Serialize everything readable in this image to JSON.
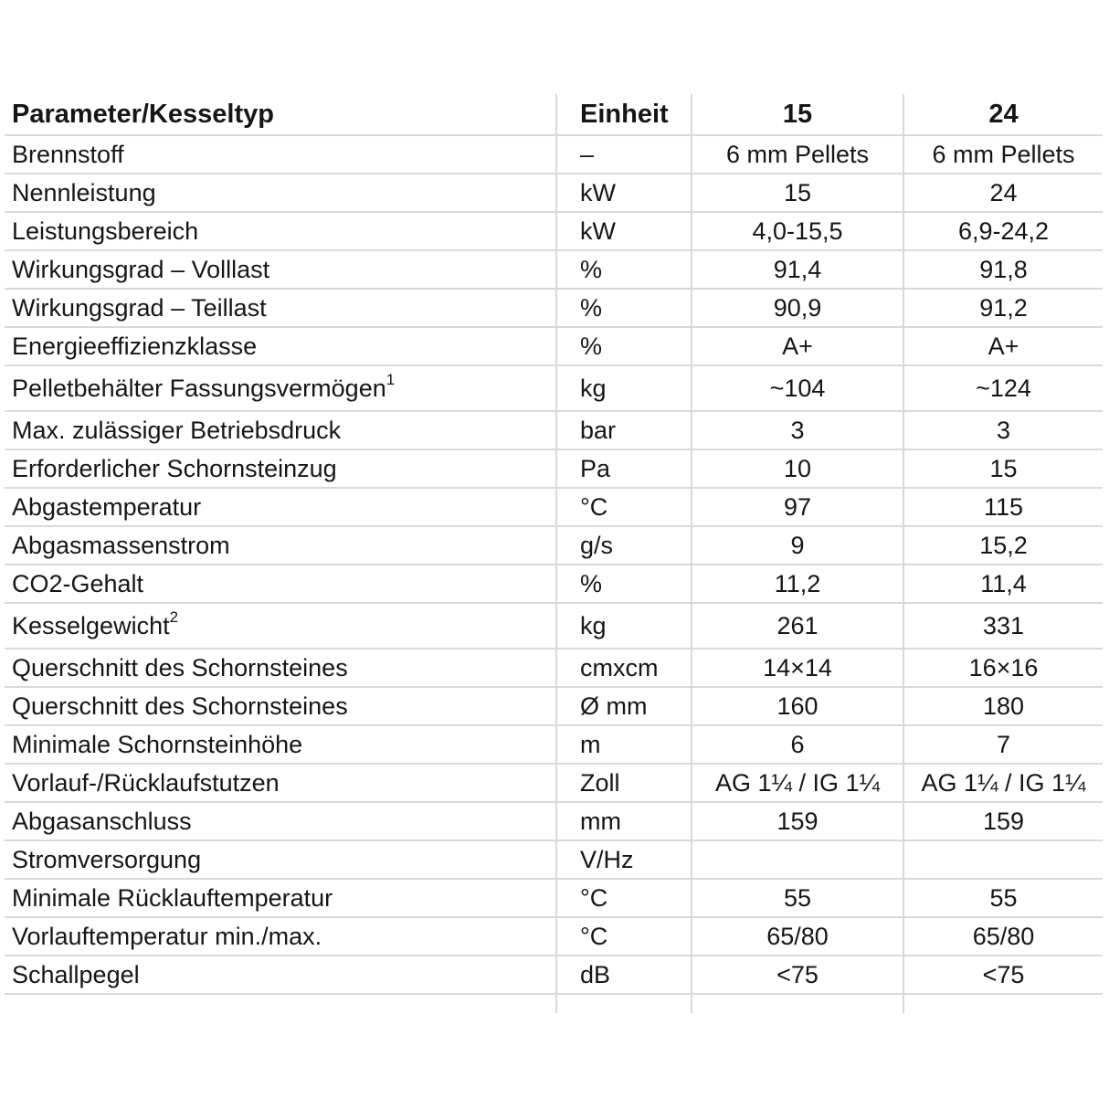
{
  "colors": {
    "background": "#ffffff",
    "grid_line": "#d9d9d9",
    "text": "#161616"
  },
  "table": {
    "columns": [
      {
        "label": "Parameter/Kesseltyp"
      },
      {
        "label": "Einheit"
      },
      {
        "label": "15"
      },
      {
        "label": "24"
      }
    ],
    "rows": [
      {
        "parameter": "Brennstoff",
        "sup": "",
        "unit": "–",
        "model15": "6 mm Pellets",
        "model24": "6 mm Pellets"
      },
      {
        "parameter": "Nennleistung",
        "sup": "",
        "unit": "kW",
        "model15": "15",
        "model24": "24"
      },
      {
        "parameter": "Leistungsbereich",
        "sup": "",
        "unit": "kW",
        "model15": "4,0-15,5",
        "model24": "6,9-24,2"
      },
      {
        "parameter": "Wirkungsgrad – Volllast",
        "sup": "",
        "unit": "%",
        "model15": "91,4",
        "model24": "91,8"
      },
      {
        "parameter": "Wirkungsgrad – Teillast",
        "sup": "",
        "unit": "%",
        "model15": "90,9",
        "model24": "91,2"
      },
      {
        "parameter": "Energieeffizienzklasse",
        "sup": "",
        "unit": "%",
        "model15": "A+",
        "model24": "A+"
      },
      {
        "parameter": "Pelletbehälter Fassungsvermögen",
        "sup": "1",
        "unit": "kg",
        "model15": "~104",
        "model24": "~124"
      },
      {
        "parameter": "Max. zulässiger Betriebsdruck",
        "sup": "",
        "unit": "bar",
        "model15": "3",
        "model24": "3"
      },
      {
        "parameter": "Erforderlicher Schornsteinzug",
        "sup": "",
        "unit": "Pa",
        "model15": "10",
        "model24": "15"
      },
      {
        "parameter": "Abgastemperatur",
        "sup": "",
        "unit": "°C",
        "model15": "97",
        "model24": "115"
      },
      {
        "parameter": "Abgasmassenstrom",
        "sup": "",
        "unit": "g/s",
        "model15": "9",
        "model24": "15,2"
      },
      {
        "parameter": "CO2-Gehalt",
        "sup": "",
        "unit": "%",
        "model15": "11,2",
        "model24": "11,4"
      },
      {
        "parameter": "Kesselgewicht",
        "sup": "2",
        "unit": "kg",
        "model15": "261",
        "model24": "331"
      },
      {
        "parameter": "Querschnitt des Schornsteines",
        "sup": "",
        "unit": "cmxcm",
        "model15": "14×14",
        "model24": "16×16"
      },
      {
        "parameter": "Querschnitt des Schornsteines",
        "sup": "",
        "unit": "Ø mm",
        "model15": "160",
        "model24": "180"
      },
      {
        "parameter": "Minimale Schornsteinhöhe",
        "sup": "",
        "unit": "m",
        "model15": "6",
        "model24": "7"
      },
      {
        "parameter": "Vorlauf-/Rücklaufstutzen",
        "sup": "",
        "unit": "Zoll",
        "model15": "AG 1¼ / IG 1¼",
        "model24": "AG 1¼ / IG 1¼"
      },
      {
        "parameter": "Abgasanschluss",
        "sup": "",
        "unit": "mm",
        "model15": "159",
        "model24": "159"
      },
      {
        "parameter": "Stromversorgung",
        "sup": "",
        "unit": "V/Hz",
        "model15": "",
        "model24": ""
      },
      {
        "parameter": "Minimale Rücklauftemperatur",
        "sup": "",
        "unit": "°C",
        "model15": "55",
        "model24": "55"
      },
      {
        "parameter": "Vorlauftemperatur min./max.",
        "sup": "",
        "unit": "°C",
        "model15": "65/80",
        "model24": "65/80"
      },
      {
        "parameter": "Schallpegel",
        "sup": "",
        "unit": "dB",
        "model15": "<75",
        "model24": "<75"
      }
    ]
  }
}
